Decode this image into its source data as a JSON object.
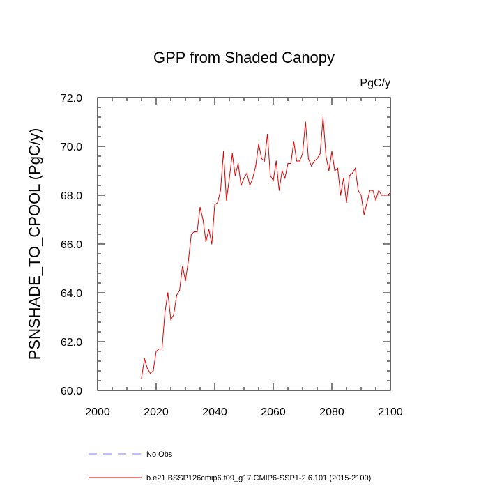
{
  "chart_data": {
    "type": "line",
    "title": "GPP from Shaded Canopy",
    "units_label": "PgC/y",
    "ylabel": "PSNSHADE_TO_CPOOL  (PgC/y)",
    "xlabel": "",
    "xlim": [
      2000,
      2100
    ],
    "ylim": [
      60.0,
      72.0
    ],
    "xticks": [
      2000,
      2020,
      2040,
      2060,
      2080,
      2100
    ],
    "yticks": [
      60.0,
      62.0,
      64.0,
      66.0,
      68.0,
      70.0,
      72.0
    ],
    "ytick_labels": [
      "60.0",
      "62.0",
      "64.0",
      "66.0",
      "68.0",
      "70.0",
      "72.0"
    ],
    "xtick_labels": [
      "2000",
      "2020",
      "2040",
      "2060",
      "2080",
      "2100"
    ],
    "series": [
      {
        "name": "b.e21.BSSP126cmip6.f09_g17.CMIP6-SSP1-2.6.101 (2015-2100)",
        "color": "#e00000",
        "style": "solid",
        "x": [
          2015,
          2016,
          2017,
          2018,
          2019,
          2020,
          2021,
          2022,
          2023,
          2024,
          2025,
          2026,
          2027,
          2028,
          2029,
          2030,
          2031,
          2032,
          2033,
          2034,
          2035,
          2036,
          2037,
          2038,
          2039,
          2040,
          2041,
          2042,
          2043,
          2044,
          2045,
          2046,
          2047,
          2048,
          2049,
          2050,
          2051,
          2052,
          2053,
          2054,
          2055,
          2056,
          2057,
          2058,
          2059,
          2060,
          2061,
          2062,
          2063,
          2064,
          2065,
          2066,
          2067,
          2068,
          2069,
          2070,
          2071,
          2072,
          2073,
          2074,
          2075,
          2076,
          2077,
          2078,
          2079,
          2080,
          2081,
          2082,
          2083,
          2084,
          2085,
          2086,
          2087,
          2088,
          2089,
          2090,
          2091,
          2092,
          2093,
          2094,
          2095,
          2096,
          2097,
          2098,
          2099,
          2100
        ],
        "values": [
          60.5,
          61.3,
          60.9,
          60.7,
          60.8,
          61.6,
          61.7,
          61.7,
          63.2,
          64.0,
          62.9,
          63.1,
          63.9,
          64.1,
          65.1,
          64.5,
          65.3,
          66.4,
          66.5,
          66.5,
          67.5,
          67.0,
          66.1,
          66.6,
          66.0,
          67.6,
          67.7,
          68.2,
          69.8,
          67.8,
          68.7,
          69.7,
          68.8,
          69.3,
          68.4,
          68.7,
          68.9,
          68.4,
          68.7,
          69.2,
          70.1,
          69.5,
          69.4,
          70.5,
          68.8,
          68.6,
          69.4,
          68.2,
          69.0,
          68.7,
          69.3,
          69.3,
          70.2,
          69.4,
          69.4,
          69.7,
          71.0,
          69.5,
          69.2,
          69.4,
          69.5,
          69.7,
          71.2,
          69.6,
          69.0,
          69.8,
          69.0,
          69.1,
          68.0,
          68.7,
          67.7,
          68.8,
          68.9,
          69.1,
          68.2,
          68.0,
          67.2,
          67.7,
          68.2,
          68.2,
          67.8,
          68.2,
          68.0,
          68.0,
          68.0,
          68.1
        ]
      },
      {
        "name": "No Obs",
        "color": "#7b7bff",
        "style": "dashed",
        "x": [],
        "values": []
      }
    ],
    "legend_position": "bottom-left"
  }
}
